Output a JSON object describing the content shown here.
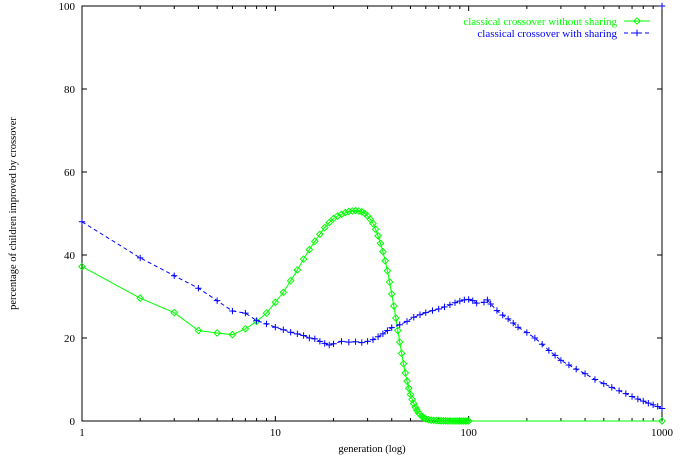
{
  "chart_data": {
    "type": "line",
    "title": "",
    "xlabel": "generation (log)",
    "ylabel": "percentage of children improved by crossover",
    "x_scale": "log",
    "xlim": [
      1,
      1000
    ],
    "ylim": [
      0,
      100
    ],
    "x_ticks": [
      1,
      10,
      100,
      1000
    ],
    "x_tick_labels": [
      "1",
      "10",
      "100",
      "1000"
    ],
    "y_ticks": [
      0,
      20,
      40,
      60,
      80,
      100
    ],
    "y_tick_labels": [
      "0",
      "20",
      "40",
      "60",
      "80",
      "100"
    ],
    "grid": false,
    "legend_position": "top-right",
    "series": [
      {
        "name": "classical crossover without sharing",
        "color": "#00ff00",
        "line_style": "solid",
        "marker": "diamond",
        "points": [
          [
            1,
            37.2
          ],
          [
            2,
            29.6
          ],
          [
            3,
            26.1
          ],
          [
            4,
            21.8
          ],
          [
            5,
            21.2
          ],
          [
            6,
            20.8
          ],
          [
            7,
            22.2
          ],
          [
            8,
            24.0
          ],
          [
            9,
            26.0
          ],
          [
            10,
            28.6
          ],
          [
            11,
            31.0
          ],
          [
            12,
            33.8
          ],
          [
            13,
            36.4
          ],
          [
            14,
            39.0
          ],
          [
            15,
            41.3
          ],
          [
            16,
            43.3
          ],
          [
            17,
            45.0
          ],
          [
            18,
            46.6
          ],
          [
            19,
            47.8
          ],
          [
            20,
            48.8
          ],
          [
            21,
            49.4
          ],
          [
            22,
            49.8
          ],
          [
            23,
            50.2
          ],
          [
            24,
            50.5
          ],
          [
            25,
            50.6
          ],
          [
            26,
            50.7
          ],
          [
            27,
            50.6
          ],
          [
            28,
            50.4
          ],
          [
            29,
            50.0
          ],
          [
            30,
            49.4
          ],
          [
            31,
            48.6
          ],
          [
            32,
            47.6
          ],
          [
            33,
            46.2
          ],
          [
            34,
            44.6
          ],
          [
            35,
            42.8
          ],
          [
            36,
            40.8
          ],
          [
            37,
            38.6
          ],
          [
            38,
            36.2
          ],
          [
            39,
            33.5
          ],
          [
            40,
            30.6
          ],
          [
            41,
            27.7
          ],
          [
            42,
            24.8
          ],
          [
            43,
            21.8
          ],
          [
            44,
            19.0
          ],
          [
            45,
            16.3
          ],
          [
            46,
            13.8
          ],
          [
            47,
            11.6
          ],
          [
            48,
            9.6
          ],
          [
            49,
            7.9
          ],
          [
            50,
            6.4
          ],
          [
            51,
            5.2
          ],
          [
            52,
            4.2
          ],
          [
            53,
            3.3
          ],
          [
            54,
            2.6
          ],
          [
            55,
            2.0
          ],
          [
            56,
            1.6
          ],
          [
            57,
            1.2
          ],
          [
            58,
            0.9
          ],
          [
            59,
            0.7
          ],
          [
            60,
            0.5
          ],
          [
            62,
            0.3
          ],
          [
            64,
            0.2
          ],
          [
            66,
            0.15
          ],
          [
            68,
            0.1
          ],
          [
            70,
            0.1
          ],
          [
            72,
            0.05
          ],
          [
            74,
            0.05
          ],
          [
            76,
            0.05
          ],
          [
            78,
            0
          ],
          [
            80,
            0
          ],
          [
            82,
            0
          ],
          [
            84,
            0
          ],
          [
            86,
            0
          ],
          [
            88,
            0
          ],
          [
            90,
            0
          ],
          [
            92,
            0
          ],
          [
            94,
            0
          ],
          [
            96,
            0
          ],
          [
            98,
            0
          ],
          [
            100,
            0
          ],
          [
            1000,
            0
          ]
        ]
      },
      {
        "name": "classical crossover with sharing",
        "color": "#0000ff",
        "line_style": "dashed",
        "marker": "plus",
        "points": [
          [
            1,
            48.0
          ],
          [
            2,
            39.3
          ],
          [
            3,
            35.0
          ],
          [
            4,
            32.0
          ],
          [
            5,
            29.0
          ],
          [
            6,
            26.5
          ],
          [
            7,
            26.0
          ],
          [
            8,
            24.2
          ],
          [
            9,
            23.4
          ],
          [
            10,
            22.6
          ],
          [
            11,
            22.0
          ],
          [
            12,
            21.4
          ],
          [
            13,
            21.0
          ],
          [
            14,
            20.6
          ],
          [
            15,
            20.0
          ],
          [
            16,
            19.8
          ],
          [
            17,
            19.2
          ],
          [
            18,
            18.7
          ],
          [
            19,
            18.3
          ],
          [
            20,
            18.6
          ],
          [
            22,
            19.2
          ],
          [
            24,
            19.0
          ],
          [
            26,
            19.1
          ],
          [
            28,
            18.9
          ],
          [
            30,
            19.2
          ],
          [
            32,
            19.6
          ],
          [
            34,
            20.3
          ],
          [
            36,
            21.0
          ],
          [
            38,
            21.8
          ],
          [
            40,
            22.5
          ],
          [
            44,
            23.2
          ],
          [
            48,
            24.0
          ],
          [
            52,
            25.0
          ],
          [
            56,
            25.6
          ],
          [
            60,
            26.1
          ],
          [
            65,
            26.6
          ],
          [
            70,
            27.0
          ],
          [
            75,
            27.5
          ],
          [
            80,
            28.0
          ],
          [
            85,
            28.5
          ],
          [
            90,
            28.9
          ],
          [
            95,
            29.2
          ],
          [
            100,
            29.3
          ],
          [
            105,
            29.0
          ],
          [
            110,
            28.4
          ],
          [
            120,
            28.6
          ],
          [
            125,
            29.2
          ],
          [
            130,
            28.2
          ],
          [
            140,
            26.6
          ],
          [
            150,
            25.5
          ],
          [
            160,
            24.6
          ],
          [
            170,
            23.6
          ],
          [
            180,
            22.6
          ],
          [
            200,
            21.3
          ],
          [
            220,
            20.0
          ],
          [
            240,
            18.5
          ],
          [
            260,
            17.0
          ],
          [
            280,
            15.8
          ],
          [
            300,
            14.6
          ],
          [
            330,
            13.5
          ],
          [
            360,
            12.5
          ],
          [
            400,
            11.4
          ],
          [
            450,
            10.0
          ],
          [
            500,
            9.0
          ],
          [
            550,
            8.1
          ],
          [
            600,
            7.3
          ],
          [
            650,
            6.6
          ],
          [
            700,
            5.9
          ],
          [
            750,
            5.3
          ],
          [
            800,
            4.8
          ],
          [
            850,
            4.3
          ],
          [
            900,
            3.9
          ],
          [
            950,
            3.5
          ],
          [
            1000,
            3.0
          ]
        ]
      }
    ],
    "annotations": [
      {
        "series": "classical crossover with sharing",
        "x": 1000,
        "y": 100,
        "marker": "plus"
      }
    ]
  }
}
